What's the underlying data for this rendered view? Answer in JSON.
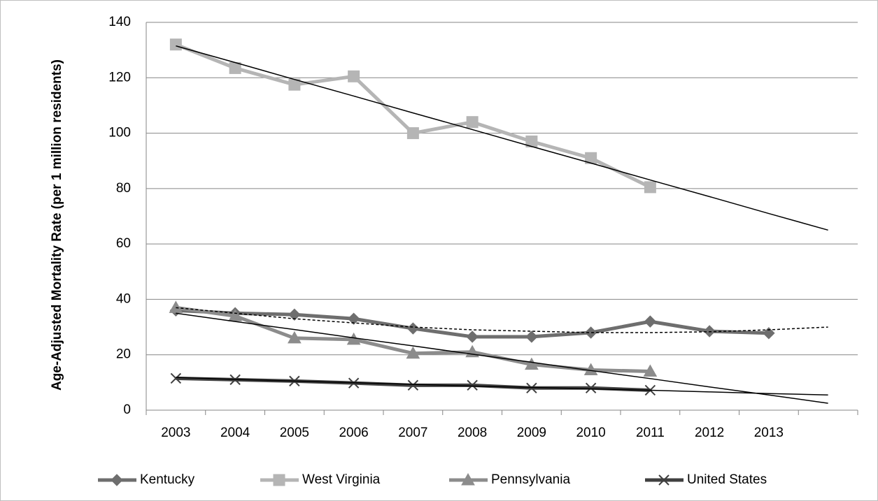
{
  "chart_data": {
    "type": "line",
    "y_label": "Age-Adjusted Mortality Rate (per 1 million residents)",
    "categories": [
      "2003",
      "2004",
      "2005",
      "2006",
      "2007",
      "2008",
      "2009",
      "2010",
      "2011",
      "2012",
      "2013",
      null
    ],
    "ylim": [
      0,
      140
    ],
    "yticks": [
      0,
      20,
      40,
      60,
      80,
      100,
      120,
      140
    ],
    "grid": true,
    "legend": "bottom",
    "series": [
      {
        "name": "Kentucky",
        "color": "#6e6e6e",
        "marker": "diamond",
        "values": [
          36,
          35,
          34.5,
          33,
          29.5,
          26.5,
          26.5,
          28,
          32,
          28.5,
          27.8,
          null
        ]
      },
      {
        "name": "West Virginia",
        "color": "#b5b5b5",
        "marker": "square",
        "values": [
          132,
          123.5,
          117.5,
          120.5,
          100,
          104,
          97,
          91,
          80.5,
          null,
          null,
          null
        ]
      },
      {
        "name": "Pennsylvania",
        "color": "#8c8c8c",
        "marker": "triangle",
        "values": [
          37,
          34,
          26,
          25.5,
          20.5,
          21,
          16.5,
          14.5,
          14,
          null,
          null,
          null
        ]
      },
      {
        "name": "United States",
        "color": "#404040",
        "marker": "x",
        "values": [
          11.5,
          11,
          10.5,
          9.8,
          9,
          9,
          8,
          8,
          7.2,
          null,
          null,
          null
        ]
      }
    ],
    "trendlines": [
      {
        "color": "#000000",
        "dashed": false,
        "values": [
          131.5,
          125.5,
          119.4,
          113.4,
          107.3,
          101.3,
          95.2,
          89.2,
          83.1,
          77.1,
          71,
          65
        ]
      },
      {
        "color": "#000000",
        "dashed": true,
        "values": [
          37,
          35,
          33,
          31.5,
          30,
          29,
          28.5,
          28,
          28,
          28.3,
          29,
          30
        ]
      },
      {
        "color": "#000000",
        "dashed": false,
        "values": [
          35,
          32,
          29.1,
          26.1,
          23.2,
          20.2,
          17.3,
          14.3,
          11.4,
          8.4,
          5.5,
          2.5
        ]
      },
      {
        "color": "#000000",
        "dashed": false,
        "values": [
          11.8,
          11.1,
          10.5,
          9.9,
          9.3,
          8.7,
          8.2,
          7.7,
          7.2,
          6.6,
          6,
          5.5
        ]
      }
    ]
  }
}
